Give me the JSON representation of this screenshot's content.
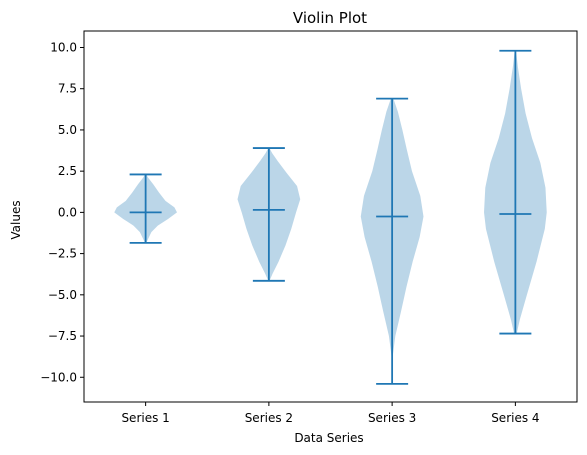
{
  "chart_data": {
    "type": "violin",
    "title": "Violin Plot",
    "xlabel": "Data Series",
    "ylabel": "Values",
    "ylim": [
      -11.5,
      11.0
    ],
    "yticks": [
      10.0,
      7.5,
      5.0,
      2.5,
      0.0,
      -2.5,
      -5.0,
      -7.5,
      -10.0
    ],
    "ytick_labels": [
      "10.0",
      "7.5",
      "5.0",
      "2.5",
      "0.0",
      "−2.5",
      "−5.0",
      "−7.5",
      "−10.0"
    ],
    "categories": [
      "Series 1",
      "Series 2",
      "Series 3",
      "Series 4"
    ],
    "grid": false,
    "colors": {
      "body": "#1f77b4",
      "body_opacity": 0.3,
      "line": "#1f77b4",
      "axis": "#000000",
      "background": "#ffffff"
    },
    "series": [
      {
        "category": "Series 1",
        "min": -1.85,
        "max": 2.3,
        "mean": 0.0,
        "density": [
          [
            -1.85,
            0.02
          ],
          [
            -1.6,
            0.08
          ],
          [
            -1.2,
            0.18
          ],
          [
            -0.8,
            0.38
          ],
          [
            -0.4,
            0.7
          ],
          [
            0.0,
            0.98
          ],
          [
            0.3,
            0.9
          ],
          [
            0.7,
            0.62
          ],
          [
            1.2,
            0.42
          ],
          [
            1.7,
            0.24
          ],
          [
            2.1,
            0.08
          ],
          [
            2.3,
            0.02
          ]
        ]
      },
      {
        "category": "Series 2",
        "min": -4.15,
        "max": 3.9,
        "mean": 0.15,
        "density": [
          [
            -4.15,
            0.02
          ],
          [
            -3.7,
            0.12
          ],
          [
            -3.0,
            0.3
          ],
          [
            -2.0,
            0.52
          ],
          [
            -1.0,
            0.7
          ],
          [
            0.0,
            0.85
          ],
          [
            0.8,
            0.98
          ],
          [
            1.6,
            0.88
          ],
          [
            2.4,
            0.55
          ],
          [
            3.1,
            0.28
          ],
          [
            3.6,
            0.1
          ],
          [
            3.9,
            0.02
          ]
        ]
      },
      {
        "category": "Series 3",
        "min": -10.4,
        "max": 6.9,
        "mean": -0.25,
        "density": [
          [
            -10.4,
            0.0
          ],
          [
            -9.0,
            0.0
          ],
          [
            -7.5,
            0.1
          ],
          [
            -6.0,
            0.28
          ],
          [
            -4.5,
            0.45
          ],
          [
            -3.0,
            0.64
          ],
          [
            -1.5,
            0.86
          ],
          [
            -0.25,
            0.98
          ],
          [
            1.0,
            0.88
          ],
          [
            2.5,
            0.62
          ],
          [
            3.8,
            0.46
          ],
          [
            5.0,
            0.32
          ],
          [
            6.1,
            0.18
          ],
          [
            6.9,
            0.04
          ]
        ]
      },
      {
        "category": "Series 4",
        "min": -7.35,
        "max": 9.8,
        "mean": -0.1,
        "density": [
          [
            -7.35,
            0.04
          ],
          [
            -6.5,
            0.14
          ],
          [
            -5.0,
            0.36
          ],
          [
            -3.0,
            0.66
          ],
          [
            -1.0,
            0.92
          ],
          [
            0.0,
            0.98
          ],
          [
            1.5,
            0.94
          ],
          [
            3.0,
            0.78
          ],
          [
            4.5,
            0.52
          ],
          [
            6.0,
            0.32
          ],
          [
            7.5,
            0.18
          ],
          [
            8.8,
            0.08
          ],
          [
            9.8,
            0.02
          ]
        ]
      }
    ]
  }
}
